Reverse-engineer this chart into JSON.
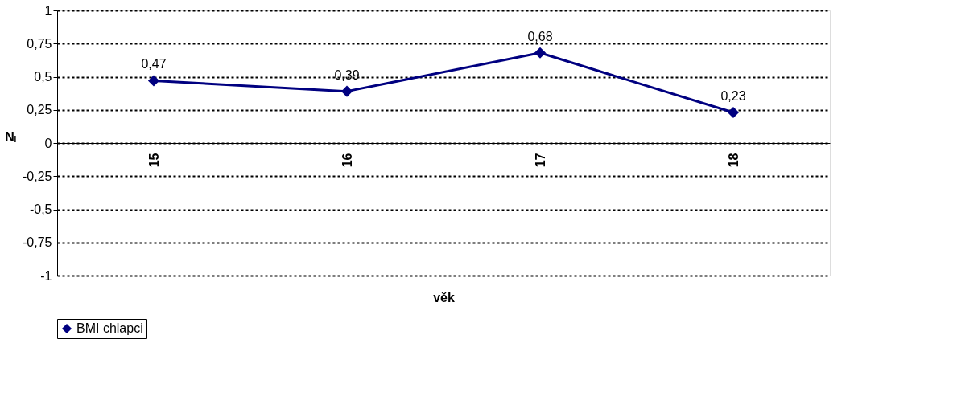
{
  "chart_data": {
    "type": "line",
    "xlabel": "věk",
    "ylabel": "Nᵢ",
    "categories": [
      "15",
      "16",
      "17",
      "18"
    ],
    "series": [
      {
        "name": "BMI chlapci",
        "color": "#000080",
        "values": [
          0.47,
          0.39,
          0.68,
          0.23
        ],
        "value_labels": [
          "0,47",
          "0,39",
          "0,68",
          "0,23"
        ]
      }
    ],
    "ylim": [
      -1,
      1
    ],
    "yticks": [
      {
        "value": -1,
        "label": "-1"
      },
      {
        "value": -0.75,
        "label": "-0,75"
      },
      {
        "value": -0.5,
        "label": "-0,5"
      },
      {
        "value": -0.25,
        "label": "-0,25"
      },
      0,
      {
        "value": 0.25,
        "label": "0,25"
      },
      {
        "value": 0.5,
        "label": "0,5"
      },
      {
        "value": 0.75,
        "label": "0,75"
      },
      1
    ],
    "grid": "y",
    "legend": "bottom",
    "marker": "diamond",
    "line_style": "solid"
  }
}
